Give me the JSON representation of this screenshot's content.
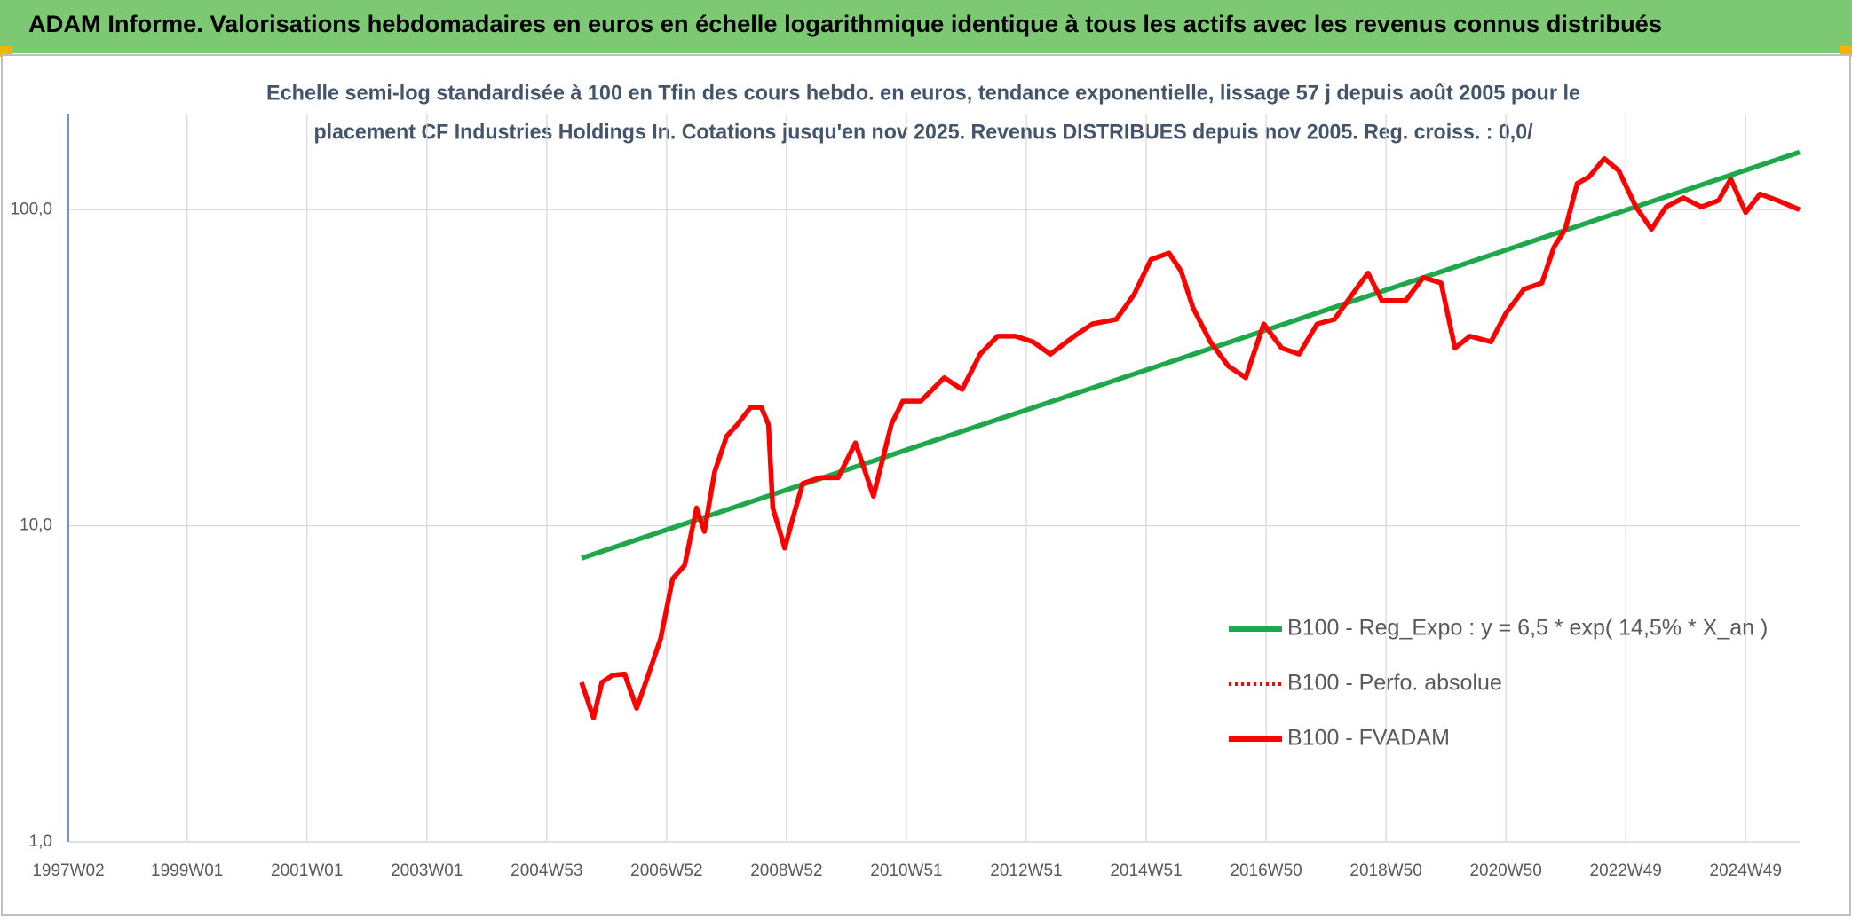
{
  "chart_data": {
    "type": "line",
    "title": "ADAM Informe. Valorisations hebdomadaires en euros en échelle logarithmique identique à tous les actifs avec les revenus connus distribués",
    "subtitle": [
      "Echelle semi-log standardisée à 100 en Tfin des cours hebdo. en euros, tendance exponentielle, lissage 57 j depuis août 2005 pour le",
      "placement CF Industries Holdings In. Cotations jusqu'en nov 2025. Revenus DISTRIBUES depuis nov 2005. Reg. croiss. : 0,0/"
    ],
    "log_scale": true,
    "grid": true,
    "xlim": [
      1997.02,
      2025.9
    ],
    "xticks": [
      {
        "value": 1997.02,
        "label": "1997W02"
      },
      {
        "value": 1999.0,
        "label": "1999W01"
      },
      {
        "value": 2001.0,
        "label": "2001W01"
      },
      {
        "value": 2003.0,
        "label": "2003W01"
      },
      {
        "value": 2005.0,
        "label": "2004W53"
      },
      {
        "value": 2007.0,
        "label": "2006W52"
      },
      {
        "value": 2009.0,
        "label": "2008W52"
      },
      {
        "value": 2011.0,
        "label": "2010W51"
      },
      {
        "value": 2013.0,
        "label": "2012W51"
      },
      {
        "value": 2015.0,
        "label": "2014W51"
      },
      {
        "value": 2017.0,
        "label": "2016W50"
      },
      {
        "value": 2019.0,
        "label": "2018W50"
      },
      {
        "value": 2021.0,
        "label": "2020W50"
      },
      {
        "value": 2023.0,
        "label": "2022W49"
      },
      {
        "value": 2025.0,
        "label": "2024W49"
      }
    ],
    "ylim": [
      1,
      200
    ],
    "yticks": [
      {
        "value": 1,
        "label": "1,0"
      },
      {
        "value": 10,
        "label": "10,0"
      },
      {
        "value": 100,
        "label": "100,0"
      }
    ],
    "series": [
      {
        "name": "B100 - Reg_Expo : y = 6,5 * exp( 14,5% *  X_an )",
        "color": "#1ea84a",
        "style": "solid",
        "x": [
          2005.58,
          2025.9
        ],
        "values": [
          7.9,
          152
        ]
      },
      {
        "name": "B100 - Perfo. absolue",
        "color": "#ff0000",
        "style": "dotted",
        "x": [],
        "values": []
      },
      {
        "name": "B100 - FVADAM",
        "color": "#ff0000",
        "style": "solid",
        "x": [
          2005.58,
          2005.78,
          2005.92,
          2006.1,
          2006.3,
          2006.5,
          2006.7,
          2006.9,
          2007.1,
          2007.3,
          2007.5,
          2007.63,
          2007.8,
          2008.0,
          2008.18,
          2008.4,
          2008.58,
          2008.7,
          2008.77,
          2008.97,
          2009.1,
          2009.27,
          2009.56,
          2009.86,
          2010.15,
          2010.45,
          2010.75,
          2010.94,
          2011.24,
          2011.63,
          2011.93,
          2012.23,
          2012.52,
          2012.82,
          2013.11,
          2013.4,
          2013.8,
          2014.1,
          2014.5,
          2014.8,
          2015.08,
          2015.38,
          2015.58,
          2015.78,
          2016.07,
          2016.37,
          2016.66,
          2016.96,
          2017.26,
          2017.55,
          2017.85,
          2018.14,
          2018.44,
          2018.7,
          2018.93,
          2019.33,
          2019.62,
          2019.92,
          2020.15,
          2020.4,
          2020.75,
          2021.0,
          2021.3,
          2021.6,
          2021.8,
          2021.99,
          2022.19,
          2022.39,
          2022.64,
          2022.88,
          2023.17,
          2023.43,
          2023.67,
          2023.96,
          2024.26,
          2024.55,
          2024.75,
          2025.0,
          2025.24,
          2025.53,
          2025.9
        ],
        "values": [
          3.2,
          2.47,
          3.2,
          3.37,
          3.4,
          2.65,
          3.4,
          4.4,
          6.8,
          7.5,
          11.4,
          9.6,
          14.8,
          19.2,
          20.9,
          23.7,
          23.7,
          20.9,
          11.4,
          8.5,
          10.5,
          13.6,
          14.2,
          14.2,
          18.3,
          12.4,
          21,
          24.8,
          24.8,
          29.4,
          27,
          34.9,
          39.8,
          39.8,
          38.2,
          34.9,
          39.8,
          43.5,
          45,
          54,
          69.6,
          72.9,
          64,
          49,
          38.2,
          32,
          29.4,
          43.5,
          36.5,
          34.9,
          43.5,
          45,
          54,
          63,
          51.6,
          51.6,
          61,
          58.6,
          36.5,
          39.8,
          38.2,
          47,
          56,
          58.6,
          76,
          86.7,
          121,
          127,
          145,
          133,
          102,
          86.7,
          102,
          109,
          102,
          107,
          125,
          98,
          112,
          107,
          100
        ]
      }
    ]
  }
}
